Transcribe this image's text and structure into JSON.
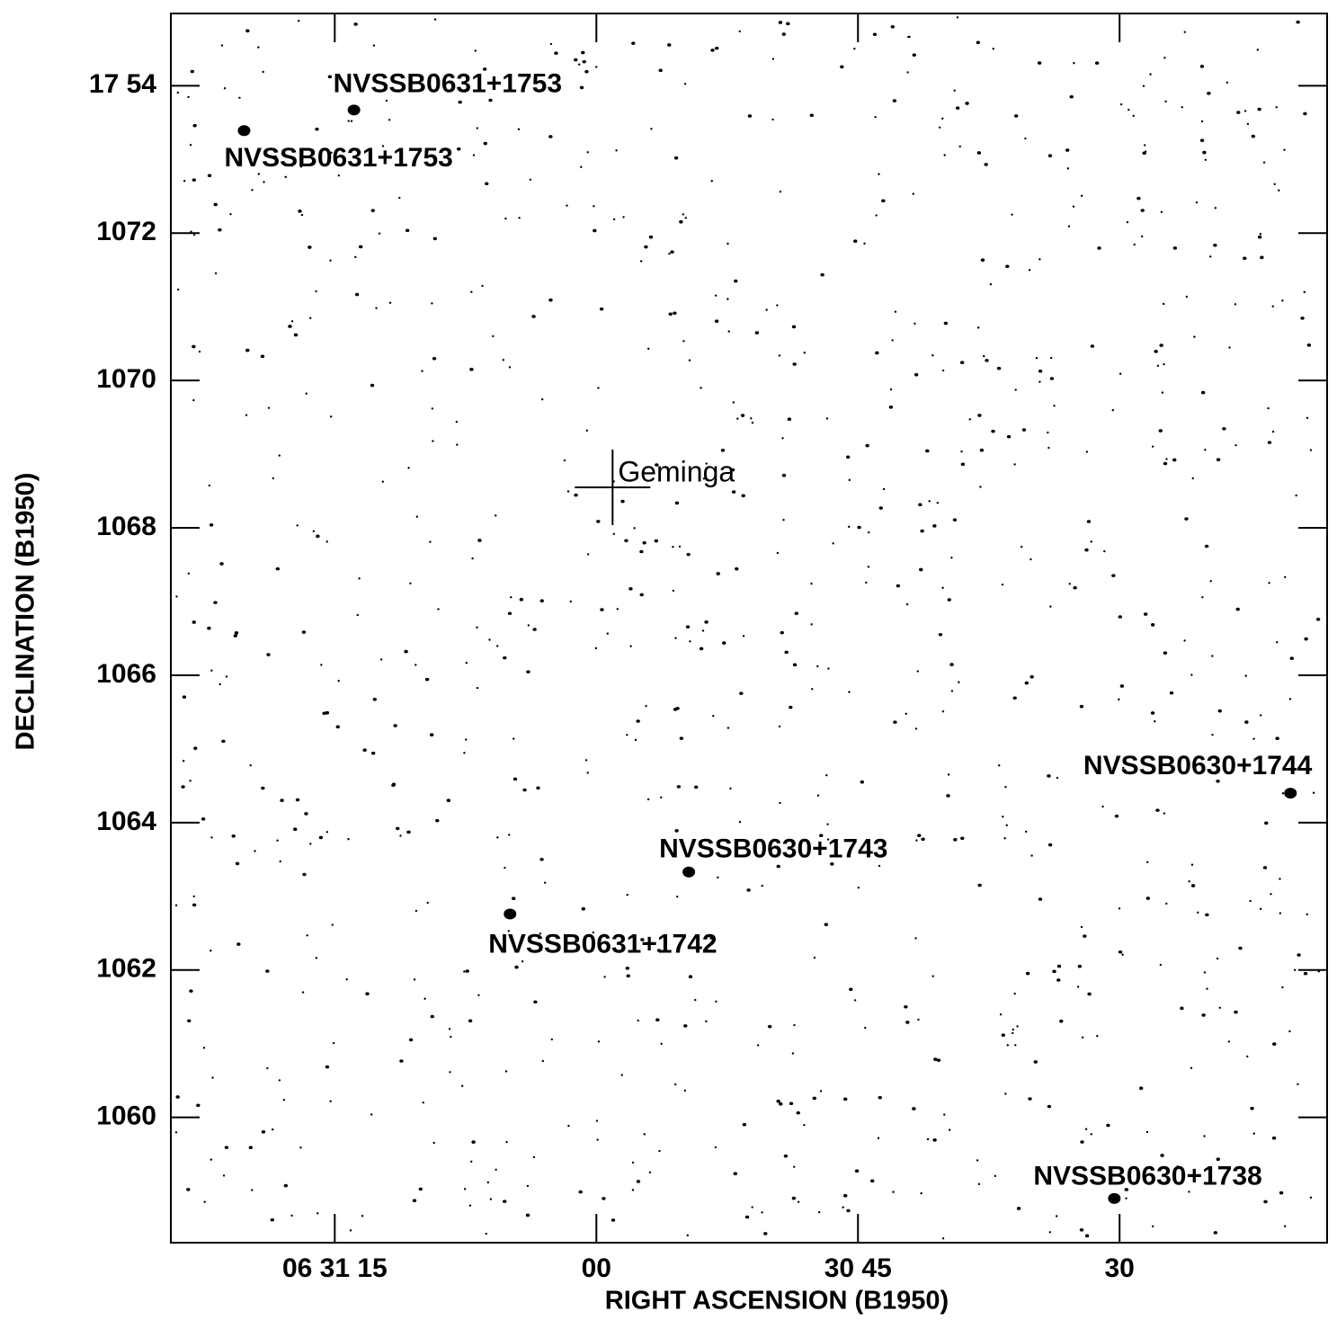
{
  "chart_data": {
    "type": "contour_map",
    "xlabel": "RIGHT ASCENSION (B1950)",
    "ylabel": "DECLINATION (B1950)",
    "xlim": [
      23484.4,
      23418.1
    ],
    "ylim": [
      1058.3,
      1074.98
    ],
    "xticks": [
      {
        "value": 23475,
        "label": "06 31 15"
      },
      {
        "value": 23460,
        "label": "00"
      },
      {
        "value": 23445,
        "label": "30 45"
      },
      {
        "value": 23430,
        "label": "30"
      }
    ],
    "yticks": [
      {
        "value": 1074,
        "label": "17 54"
      },
      1072,
      1070,
      1068,
      1066,
      1064,
      1062,
      1060
    ],
    "sources": [
      {
        "name": "NVSSB0631+1753",
        "x": 23473.9,
        "y": 1073.67
      },
      {
        "name": "NVSSB0631+1753",
        "x": 23480.2,
        "y": 1073.39
      },
      {
        "name": "NVSSB0631+1742",
        "x": 23464.95,
        "y": 1062.76
      },
      {
        "name": "NVSSB0630+1743",
        "x": 23454.7,
        "y": 1063.33
      },
      {
        "name": "NVSSB0630+1744",
        "x": 23420.2,
        "y": 1064.4
      },
      {
        "name": "NVSSB0630+1738",
        "x": 23430.3,
        "y": 1058.9
      }
    ],
    "marker": {
      "name": "Geminga",
      "x": 23459.07,
      "y": 1068.55
    }
  }
}
